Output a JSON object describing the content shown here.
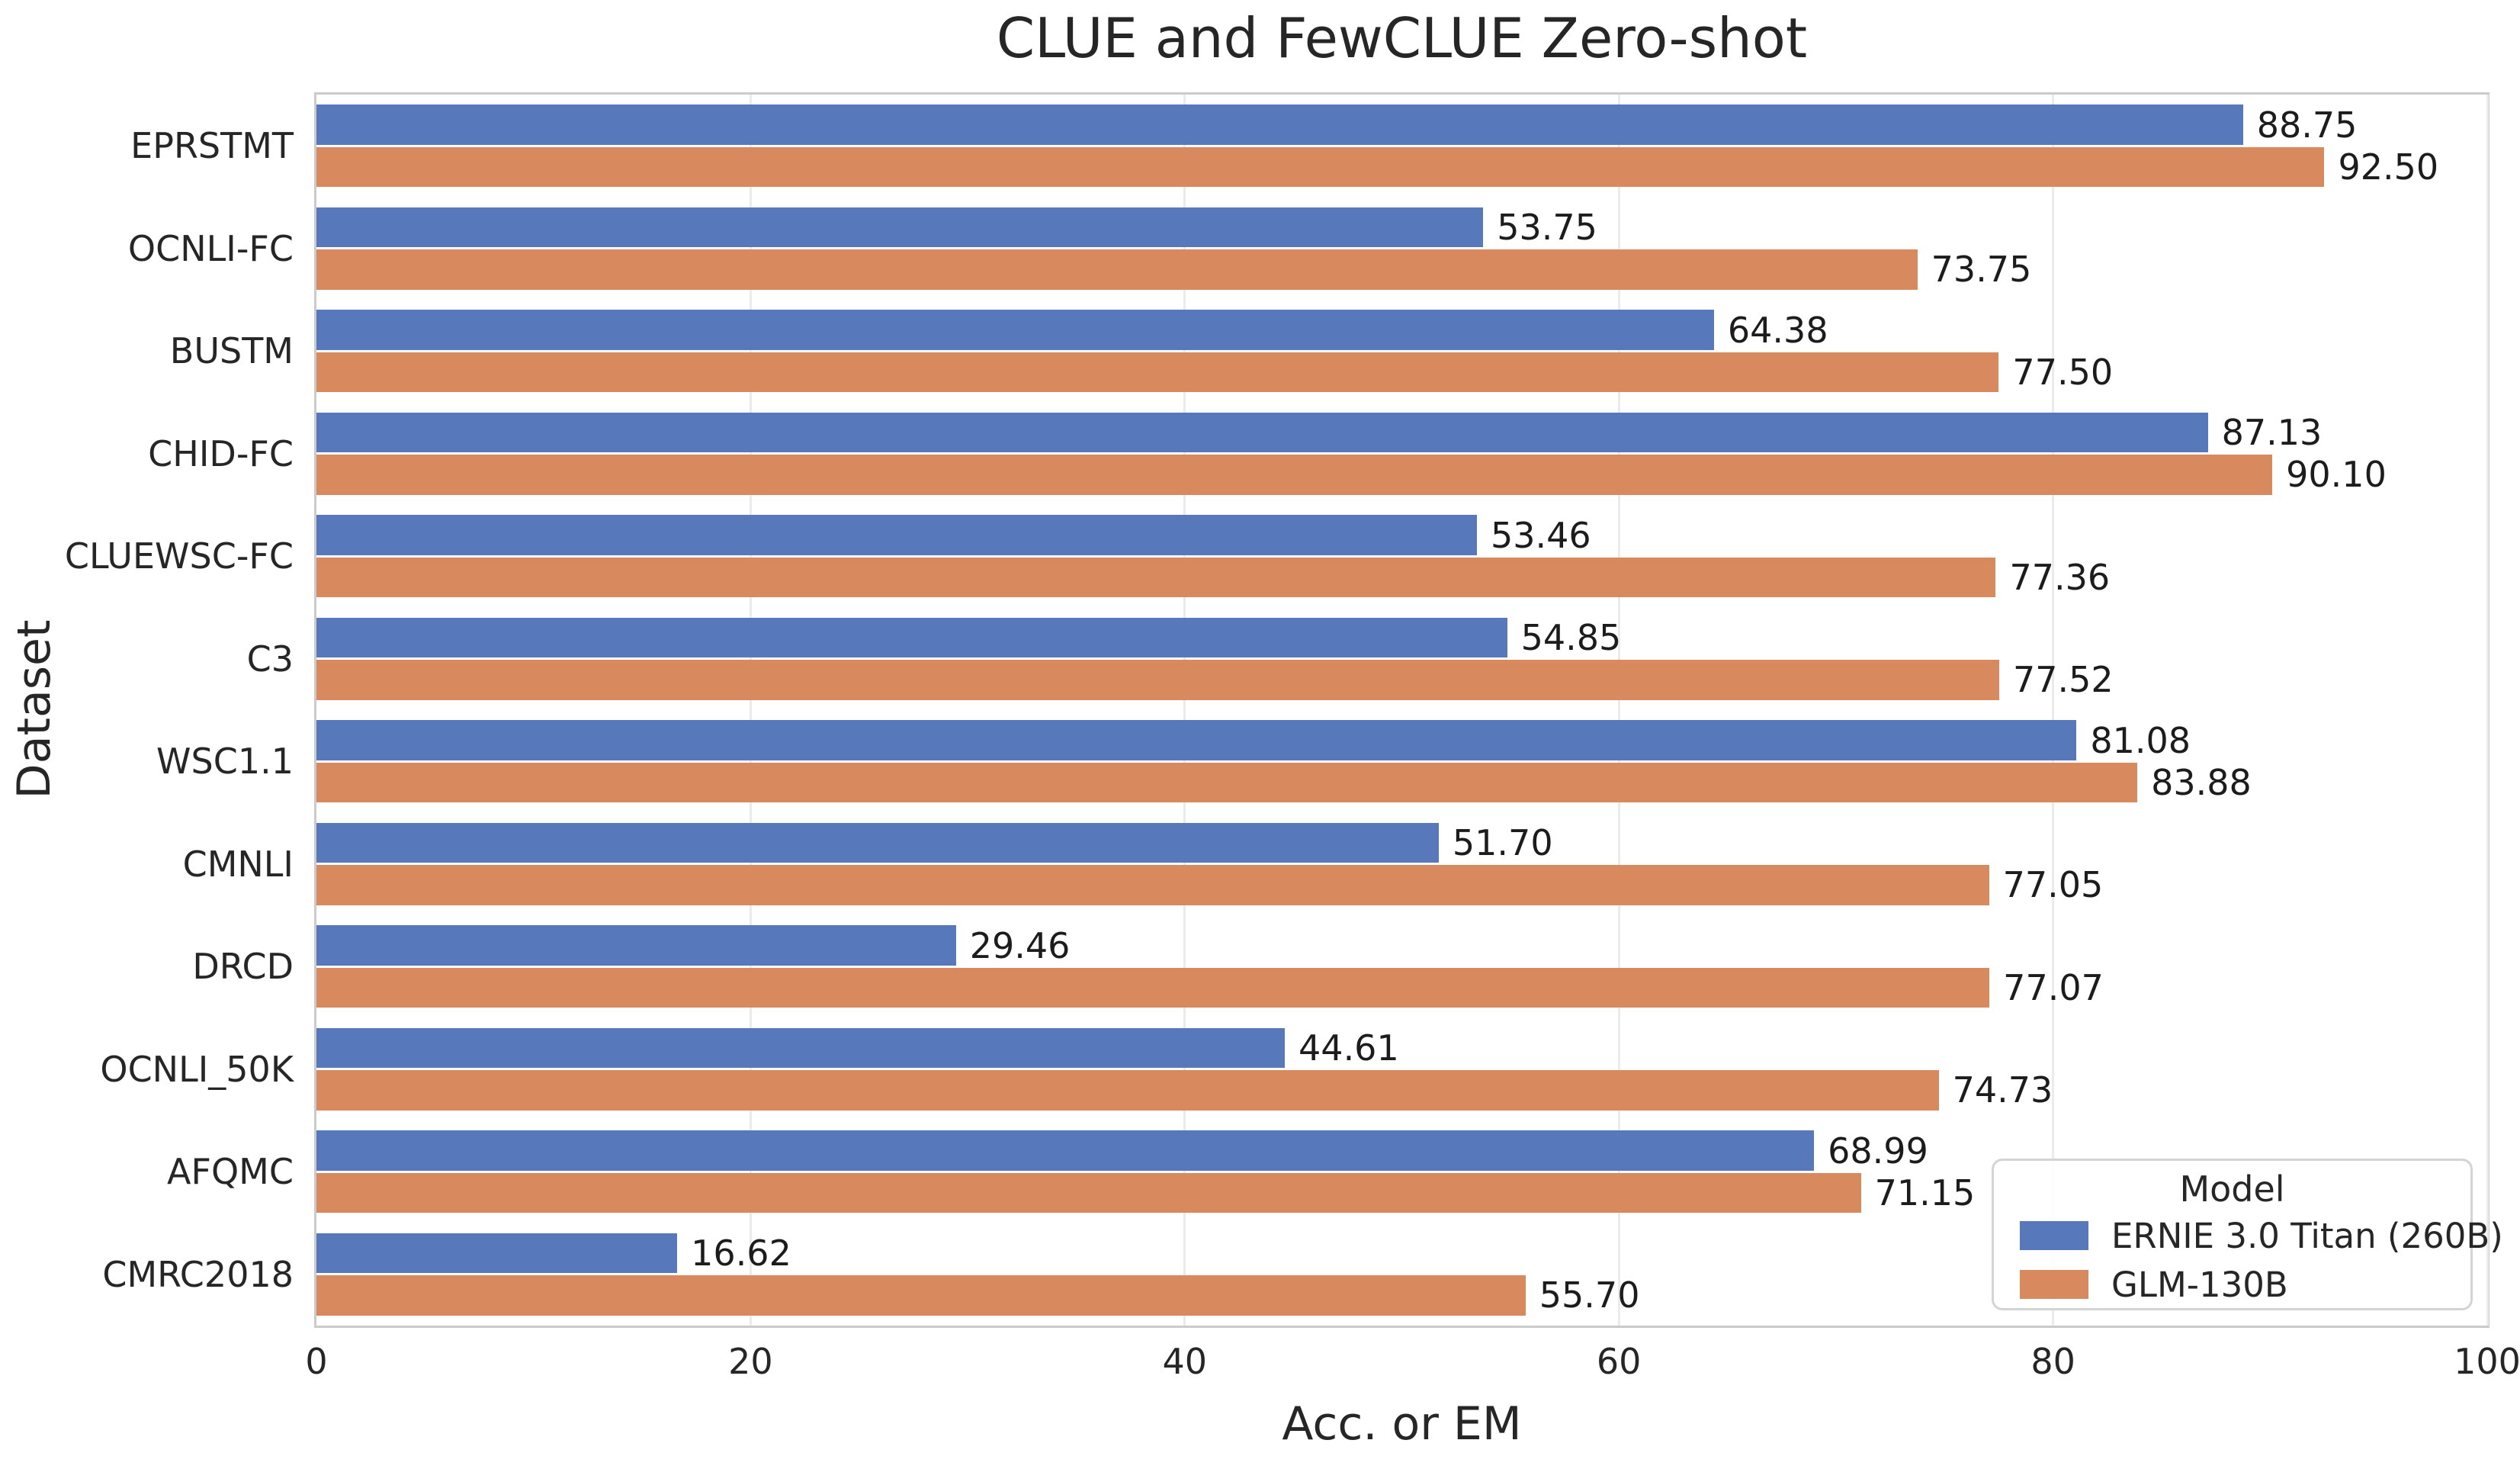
{
  "chart_data": {
    "type": "bar",
    "orientation": "horizontal",
    "title": "CLUE and FewCLUE Zero-shot",
    "xlabel": "Acc. or EM",
    "ylabel": "Dataset",
    "xlim": [
      0,
      100
    ],
    "x_ticks": [
      0,
      20,
      40,
      60,
      80,
      100
    ],
    "grid": true,
    "value_label_decimals": 2,
    "legend": {
      "title": "Model",
      "position": "lower right"
    },
    "categories": [
      "EPRSTMT",
      "OCNLI-FC",
      "BUSTM",
      "CHID-FC",
      "CLUEWSC-FC",
      "C3",
      "WSC1.1",
      "CMNLI",
      "DRCD",
      "OCNLI_50K",
      "AFQMC",
      "CMRC2018"
    ],
    "series": [
      {
        "name": "ERNIE 3.0 Titan (260B)",
        "color": "#5878bc",
        "values": [
          88.75,
          53.75,
          64.38,
          87.13,
          53.46,
          54.85,
          81.08,
          51.7,
          29.46,
          44.61,
          68.99,
          16.62
        ]
      },
      {
        "name": "GLM-130B",
        "color": "#d88a5e",
        "values": [
          92.5,
          73.75,
          77.5,
          90.1,
          77.36,
          77.52,
          83.88,
          77.05,
          77.07,
          74.73,
          71.15,
          55.7
        ]
      }
    ]
  }
}
